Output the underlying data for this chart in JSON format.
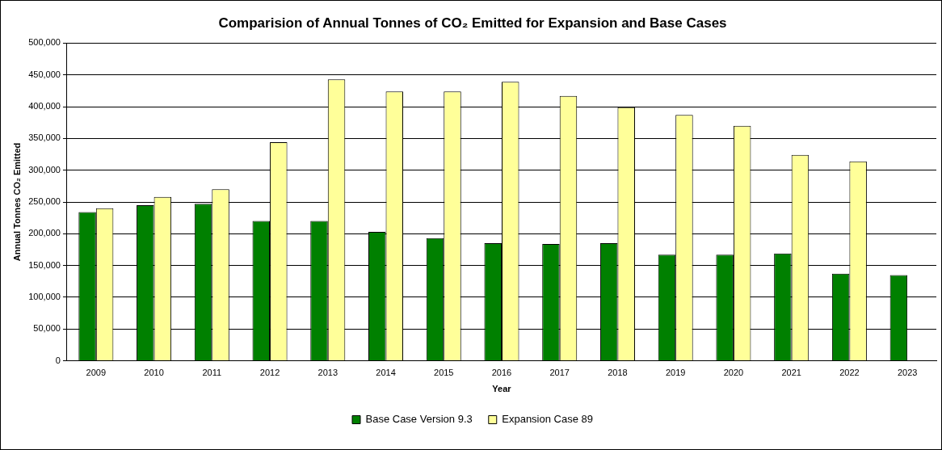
{
  "chart_data": {
    "type": "bar",
    "title": "Comparision of Annual Tonnes of CO₂ Emitted for Expansion and Base Cases",
    "xlabel": "Year",
    "ylabel": "Annual Tonnes CO₂ Emitted",
    "categories": [
      "2009",
      "2010",
      "2011",
      "2012",
      "2013",
      "2014",
      "2015",
      "2016",
      "2017",
      "2018",
      "2019",
      "2020",
      "2021",
      "2022",
      "2023"
    ],
    "series": [
      {
        "name": "Base Case Version 9.3",
        "color": "#008000",
        "values": [
          234000,
          245000,
          247000,
          220000,
          220000,
          203000,
          193000,
          185000,
          184000,
          185000,
          167000,
          167000,
          169000,
          137000,
          135000
        ]
      },
      {
        "name": "Expansion Case 89",
        "color": "#ffff99",
        "values": [
          240000,
          258000,
          270000,
          344000,
          443000,
          424000,
          424000,
          439000,
          417000,
          399000,
          387000,
          370000,
          324000,
          314000,
          null
        ]
      }
    ],
    "ylim": [
      0,
      500000
    ],
    "yticks": [
      0,
      {
        "value": 50000,
        "label": "50,000"
      },
      {
        "value": 100000,
        "label": "100,000"
      },
      {
        "value": 150000,
        "label": "150,000"
      },
      {
        "value": 200000,
        "label": "200,000"
      },
      {
        "value": 250000,
        "label": "250,000"
      },
      {
        "value": 300000,
        "label": "300,000"
      },
      {
        "value": 350000,
        "label": "350,000"
      },
      {
        "value": 400000,
        "label": "400,000"
      },
      {
        "value": 450000,
        "label": "450,000"
      },
      {
        "value": 500000,
        "label": "500,000"
      }
    ],
    "grid": "y",
    "legend": "bottom"
  }
}
